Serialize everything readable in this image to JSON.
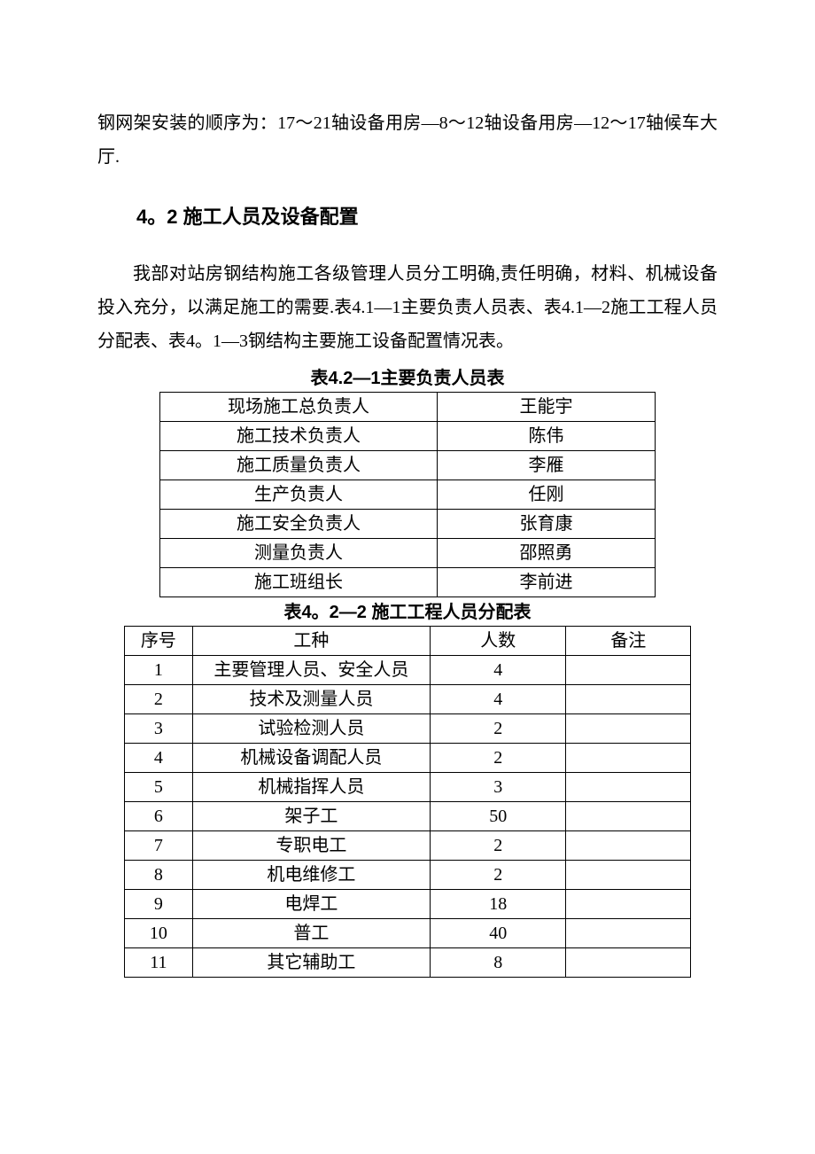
{
  "para1": "钢网架安装的顺序为：17～21轴设备用房—8～12轴设备用房—12～17轴候车大厅.",
  "heading": "4。2 施工人员及设备配置",
  "para2": "我部对站房钢结构施工各级管理人员分工明确,责任明确，材料、机械设备投入充分，以满足施工的需要.表4.1—1主要负责人员表、表4.1—2施工工程人员分配表、表4。1—3钢结构主要施工设备配置情况表。",
  "table1": {
    "title": "表4.2—1主要负责人员表",
    "rows": [
      [
        "现场施工总负责人",
        "王能宇"
      ],
      [
        "施工技术负责人",
        "陈伟"
      ],
      [
        "施工质量负责人",
        "李雁"
      ],
      [
        "生产负责人",
        "任刚"
      ],
      [
        "施工安全负责人",
        "张育康"
      ],
      [
        "测量负责人",
        "邵照勇"
      ],
      [
        "施工班组长",
        "李前进"
      ]
    ]
  },
  "table2": {
    "title": "表4。2—2 施工工程人员分配表",
    "header": [
      "序号",
      "工种",
      "人数",
      "备注"
    ],
    "rows": [
      [
        "1",
        "主要管理人员、安全人员",
        "4",
        ""
      ],
      [
        "2",
        "技术及测量人员",
        "4",
        ""
      ],
      [
        "3",
        "试验检测人员",
        "2",
        ""
      ],
      [
        "4",
        "机械设备调配人员",
        "2",
        ""
      ],
      [
        "5",
        "机械指挥人员",
        "3",
        ""
      ],
      [
        "6",
        "架子工",
        "50",
        ""
      ],
      [
        "7",
        "专职电工",
        "2",
        ""
      ],
      [
        "8",
        "机电维修工",
        "2",
        ""
      ],
      [
        "9",
        "电焊工",
        "18",
        ""
      ],
      [
        "10",
        "普工",
        "40",
        ""
      ],
      [
        "11",
        "其它辅助工",
        "8",
        ""
      ]
    ]
  },
  "colors": {
    "page_bg": "#ffffff",
    "text": "#000000",
    "border": "#000000"
  },
  "fonts": {
    "body_family": "SimSun",
    "heading_family": "SimHei",
    "body_size_pt": 15,
    "heading_size_pt": 16
  }
}
